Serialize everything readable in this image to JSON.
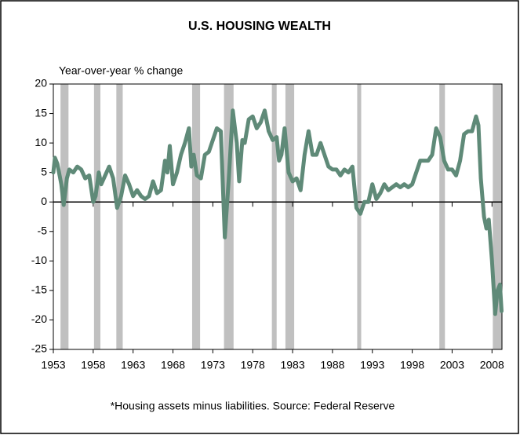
{
  "chart_data": {
    "type": "line",
    "title": "U.S. HOUSING WEALTH",
    "ylabel": "Year-over-year % change",
    "footnote": "*Housing assets minus liabilities. Source: Federal Reserve",
    "xlim": [
      1953,
      2009.25
    ],
    "ylim": [
      -25,
      20
    ],
    "xticks": [
      1953,
      1958,
      1963,
      1968,
      1973,
      1978,
      1983,
      1988,
      1993,
      1998,
      2003,
      2008
    ],
    "yticks": [
      -25,
      -20,
      -15,
      -10,
      -5,
      0,
      5,
      10,
      15,
      20
    ],
    "shaded_periods": [
      [
        1953.9,
        1954.9
      ],
      [
        1958.1,
        1958.9
      ],
      [
        1960.9,
        1961.7
      ],
      [
        1970.4,
        1971.4
      ],
      [
        1974.4,
        1975.6
      ],
      [
        1980.4,
        1981.0
      ],
      [
        1982.1,
        1983.2
      ],
      [
        1991.1,
        1991.6
      ],
      [
        2001.4,
        2002.1
      ],
      [
        2008.1,
        2009.25
      ]
    ],
    "shade_color": "#c0c0c0",
    "series": [
      {
        "color": "#5f8a78",
        "x": [
          1953.0,
          1953.2,
          1953.5,
          1954.0,
          1954.3,
          1954.7,
          1955.0,
          1955.5,
          1956.0,
          1956.5,
          1957.0,
          1957.5,
          1958.0,
          1958.3,
          1958.7,
          1959.0,
          1959.5,
          1960.0,
          1960.5,
          1961.0,
          1961.5,
          1962.0,
          1962.5,
          1963.0,
          1963.5,
          1964.0,
          1964.5,
          1965.0,
          1965.5,
          1966.0,
          1966.5,
          1967.0,
          1967.3,
          1967.6,
          1968.0,
          1968.5,
          1969.0,
          1969.5,
          1970.0,
          1970.3,
          1970.6,
          1971.0,
          1971.5,
          1972.0,
          1972.5,
          1973.0,
          1973.5,
          1974.0,
          1974.5,
          1975.0,
          1975.5,
          1976.0,
          1976.3,
          1976.7,
          1977.0,
          1977.5,
          1978.0,
          1978.5,
          1979.0,
          1979.5,
          1980.0,
          1980.5,
          1981.0,
          1981.3,
          1981.6,
          1982.0,
          1982.5,
          1983.0,
          1983.5,
          1984.0,
          1984.5,
          1985.0,
          1985.5,
          1986.0,
          1986.5,
          1987.0,
          1987.5,
          1988.0,
          1988.5,
          1989.0,
          1989.5,
          1990.0,
          1990.5,
          1991.0,
          1991.5,
          1992.0,
          1992.5,
          1993.0,
          1993.5,
          1994.0,
          1994.5,
          1995.0,
          1995.5,
          1996.0,
          1996.5,
          1997.0,
          1997.5,
          1998.0,
          1998.5,
          1999.0,
          1999.5,
          2000.0,
          2000.5,
          2001.0,
          2001.5,
          2002.0,
          2002.5,
          2003.0,
          2003.5,
          2004.0,
          2004.5,
          2005.0,
          2005.5,
          2006.0,
          2006.3,
          2006.6,
          2007.0,
          2007.3,
          2007.6,
          2008.0,
          2008.4,
          2008.7,
          2009.0,
          2009.2
        ],
        "values": [
          5,
          7.5,
          6.5,
          3,
          -0.5,
          4,
          5.5,
          5,
          6,
          5.5,
          4,
          4.5,
          0,
          1,
          5,
          3,
          4.5,
          6,
          4,
          -1,
          1,
          4.5,
          3,
          1,
          2,
          1,
          0.5,
          1,
          3.5,
          1.5,
          2,
          7,
          5,
          9.5,
          3,
          5,
          8,
          10,
          12.5,
          6,
          8,
          4.5,
          4,
          8,
          8.5,
          10.5,
          12.5,
          12,
          -6,
          4,
          15.5,
          10,
          3.5,
          10.5,
          10,
          14,
          14.5,
          12.5,
          13.5,
          15.5,
          12,
          10.5,
          11,
          7,
          8,
          12.5,
          5,
          3.5,
          4,
          2,
          8,
          12,
          8,
          8,
          10,
          8,
          6,
          5.5,
          5.5,
          4.5,
          5.5,
          5,
          6,
          -1,
          -2,
          0,
          0,
          3,
          0.5,
          1.5,
          3,
          2,
          2.5,
          3,
          2.5,
          3,
          2.5,
          3,
          5,
          7,
          7,
          7,
          8,
          12.5,
          11,
          7,
          5.5,
          5.5,
          4.5,
          7,
          11.5,
          12,
          12,
          14.5,
          13,
          4,
          -2.5,
          -4.5,
          -3,
          -10,
          -19,
          -15,
          -14,
          -18.5
        ]
      }
    ]
  }
}
